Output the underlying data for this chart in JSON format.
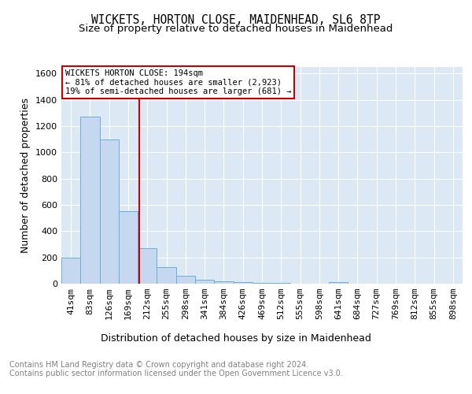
{
  "title": "WICKETS, HORTON CLOSE, MAIDENHEAD, SL6 8TP",
  "subtitle": "Size of property relative to detached houses in Maidenhead",
  "xlabel": "Distribution of detached houses by size in Maidenhead",
  "ylabel": "Number of detached properties",
  "footer": "Contains HM Land Registry data © Crown copyright and database right 2024.\nContains public sector information licensed under the Open Government Licence v3.0.",
  "categories": [
    "41sqm",
    "83sqm",
    "126sqm",
    "169sqm",
    "212sqm",
    "255sqm",
    "298sqm",
    "341sqm",
    "384sqm",
    "426sqm",
    "469sqm",
    "512sqm",
    "555sqm",
    "598sqm",
    "641sqm",
    "684sqm",
    "727sqm",
    "769sqm",
    "812sqm",
    "855sqm",
    "898sqm"
  ],
  "values": [
    200,
    1270,
    1095,
    555,
    270,
    125,
    62,
    30,
    20,
    12,
    8,
    5,
    3,
    2,
    15,
    0,
    0,
    0,
    0,
    0,
    0
  ],
  "bar_color": "#c5d8ef",
  "bar_edge_color": "#6aaed6",
  "background_color": "#dce9f5",
  "grid_color": "#ffffff",
  "annotation_text": "WICKETS HORTON CLOSE: 194sqm\n← 81% of detached houses are smaller (2,923)\n19% of semi-detached houses are larger (681) →",
  "vline_color": "#cc0000",
  "ylim": [
    0,
    1650
  ],
  "yticks": [
    0,
    200,
    400,
    600,
    800,
    1000,
    1200,
    1400,
    1600
  ],
  "title_fontsize": 10.5,
  "subtitle_fontsize": 9.5,
  "axis_label_fontsize": 9,
  "tick_fontsize": 8,
  "footer_fontsize": 7
}
